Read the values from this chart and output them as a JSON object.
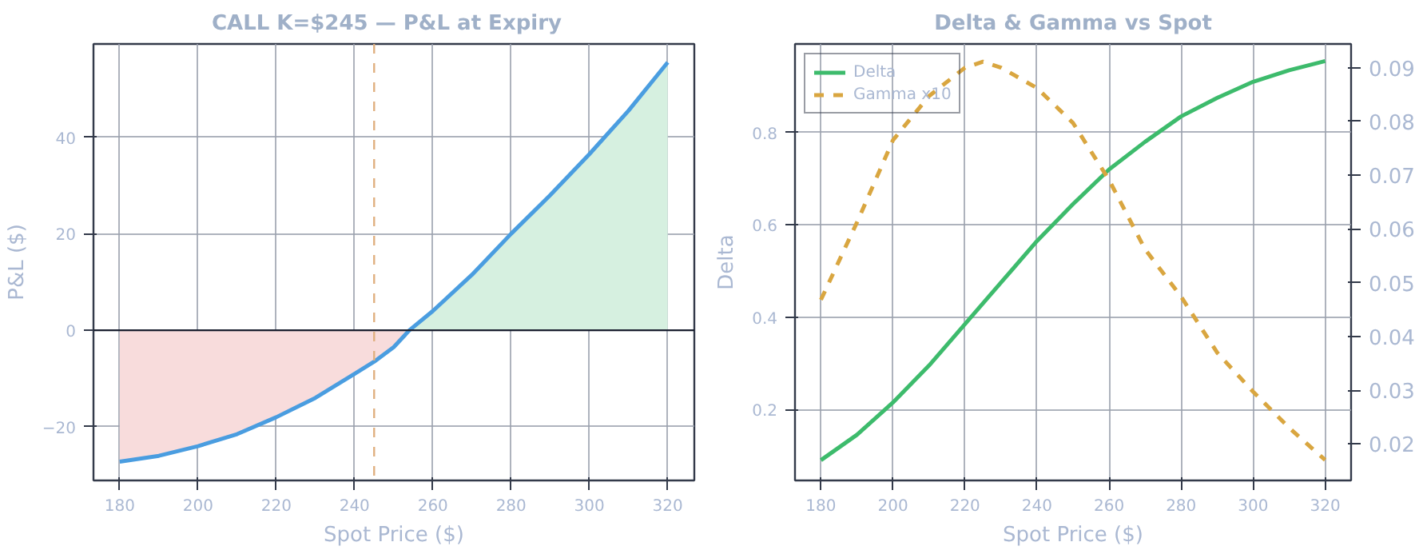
{
  "chart_data": [
    {
      "type": "line",
      "title": "CALL K=$245  —  P&L at Expiry",
      "xlabel": "Spot Price ($)",
      "ylabel": "P&L ($)",
      "xlim": [
        173.3,
        326.8
      ],
      "ylim": [
        -31.1,
        59.3
      ],
      "xticks": [
        180,
        200,
        220,
        240,
        260,
        280,
        300,
        320
      ],
      "yticks": [
        -20,
        0,
        20,
        40
      ],
      "grid": true,
      "legend": false,
      "series": [
        {
          "type": "area",
          "color": "#f8dcdc",
          "x": [
            180,
            190,
            200,
            210,
            220,
            230,
            240,
            245,
            250,
            254
          ],
          "values": [
            -27.2,
            -26,
            -24,
            -21.5,
            -18,
            -14,
            -9,
            -6.5,
            -3.5,
            0
          ]
        },
        {
          "type": "area",
          "color": "#d6f0e0",
          "x": [
            254,
            260,
            270,
            280,
            290,
            300,
            310,
            320
          ],
          "values": [
            0,
            4,
            11.5,
            20,
            28,
            36.5,
            45.5,
            55.5
          ]
        },
        {
          "type": "line",
          "color": "#4a9de0",
          "x": [
            180,
            190,
            200,
            210,
            220,
            230,
            240,
            245,
            250,
            254,
            260,
            270,
            280,
            290,
            300,
            310,
            320
          ],
          "values": [
            -27.2,
            -26,
            -24,
            -21.5,
            -18,
            -14,
            -9,
            -6.5,
            -3.5,
            0,
            4,
            11.5,
            20,
            28,
            36.5,
            45.5,
            55.5
          ]
        }
      ],
      "ref_lines": [
        {
          "axis": "y",
          "value": 0,
          "color": "#1a2030",
          "line_style": "solid"
        },
        {
          "axis": "x",
          "value": 245,
          "color": "#e0b080",
          "line_style": "dashed"
        }
      ]
    },
    {
      "type": "line",
      "title": "Delta & Gamma vs Spot",
      "xlabel": "Spot Price ($)",
      "ylabel": "Delta",
      "xlim": [
        172.8,
        327.2
      ],
      "ylim": [
        0.046,
        0.992
      ],
      "y2lim": [
        0.0132,
        0.0944
      ],
      "xticks": [
        180,
        200,
        220,
        240,
        260,
        280,
        300,
        320
      ],
      "yticks": [
        0.2,
        0.4,
        0.6,
        0.8
      ],
      "y2ticks": [
        0.02,
        0.03,
        0.04,
        0.05,
        0.06,
        0.07,
        0.08,
        0.09
      ],
      "grid": true,
      "legend": "top left",
      "x": [
        180,
        190,
        200,
        210,
        220,
        225,
        230,
        240,
        250,
        260,
        270,
        280,
        290,
        300,
        310,
        320
      ],
      "series": [
        {
          "name": "Delta",
          "color": "#3dbb6c",
          "line_style": "solid",
          "values": [
            0.09,
            0.145,
            0.215,
            0.295,
            0.385,
            0.43,
            0.475,
            0.565,
            0.645,
            0.72,
            0.78,
            0.835,
            0.875,
            0.91,
            0.935,
            0.955
          ]
        },
        {
          "name": "Gamma x10",
          "color": "#d9a640",
          "line_style": "dashed",
          "axis": "y2",
          "values": [
            0.0468,
            0.0612,
            0.0765,
            0.0847,
            0.09,
            0.0911,
            0.09,
            0.0862,
            0.0797,
            0.0691,
            0.0562,
            0.0474,
            0.037,
            0.0297,
            0.023,
            0.017
          ]
        }
      ]
    }
  ]
}
